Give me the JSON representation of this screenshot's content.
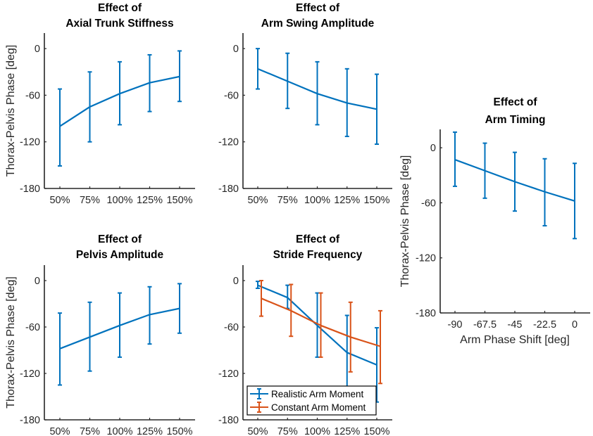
{
  "figure": {
    "colors": {
      "realistic": "#0072BD",
      "constant": "#D95319",
      "axis": "#262626"
    }
  },
  "chart_data": [
    {
      "id": "axial-trunk-stiffness",
      "type": "line",
      "title_lines": [
        "Effect of",
        "Axial Trunk Stiffness"
      ],
      "xlabel": "",
      "ylabel": "Thorax-Pelvis Phase [deg]",
      "categories": [
        "50%",
        "75%",
        "100%",
        "125%",
        "150%"
      ],
      "yticks": [
        0,
        -60,
        -120,
        -180
      ],
      "ytick_labels": [
        "0",
        "-60",
        "-120",
        "-180"
      ],
      "ylim": [
        -180,
        20
      ],
      "series": [
        {
          "name": "Realistic Arm Moment",
          "color": "#0072BD",
          "values": [
            -100,
            -75,
            -58,
            -44,
            -36
          ],
          "upper": [
            -52,
            -30,
            -17,
            -8,
            -3
          ],
          "lower": [
            -151,
            -120,
            -98,
            -81,
            -68
          ]
        }
      ]
    },
    {
      "id": "arm-swing-amplitude",
      "type": "line",
      "title_lines": [
        "Effect of",
        "Arm Swing Amplitude"
      ],
      "xlabel": "",
      "ylabel": "",
      "categories": [
        "50%",
        "75%",
        "100%",
        "125%",
        "150%"
      ],
      "yticks": [
        0,
        -60,
        -120,
        -180
      ],
      "ytick_labels": [
        "0",
        "-60",
        "-120",
        "-180"
      ],
      "ylim": [
        -180,
        20
      ],
      "series": [
        {
          "name": "Realistic Arm Moment",
          "color": "#0072BD",
          "values": [
            -26,
            -42,
            -58,
            -70,
            -78
          ],
          "upper": [
            0,
            -6,
            -17,
            -26,
            -33
          ],
          "lower": [
            -52,
            -77,
            -98,
            -113,
            -123
          ]
        }
      ]
    },
    {
      "id": "arm-timing",
      "type": "line",
      "title_lines": [
        "Effect of",
        "Arm Timing"
      ],
      "xlabel": "Arm Phase Shift [deg]",
      "ylabel": "Thorax-Pelvis Phase [deg]",
      "categories": [
        "-90",
        "-67.5",
        "-45",
        "-22.5",
        "0"
      ],
      "yticks": [
        0,
        -60,
        -120,
        -180
      ],
      "ytick_labels": [
        "0",
        "-60",
        "-120",
        "-180"
      ],
      "ylim": [
        -180,
        20
      ],
      "series": [
        {
          "name": "Realistic Arm Moment",
          "color": "#0072BD",
          "values": [
            -13,
            -25,
            -37,
            -48,
            -58
          ],
          "upper": [
            17,
            5,
            -5,
            -12,
            -17
          ],
          "lower": [
            -42,
            -55,
            -69,
            -85,
            -99
          ]
        }
      ]
    },
    {
      "id": "pelvis-amplitude",
      "type": "line",
      "title_lines": [
        "Effect of",
        "Pelvis Amplitude"
      ],
      "xlabel": "",
      "ylabel": "Thorax-Pelvis Phase [deg]",
      "categories": [
        "50%",
        "75%",
        "100%",
        "125%",
        "150%"
      ],
      "yticks": [
        0,
        -60,
        -120,
        -180
      ],
      "ytick_labels": [
        "0",
        "-60",
        "-120",
        "-180"
      ],
      "ylim": [
        -180,
        20
      ],
      "series": [
        {
          "name": "Realistic Arm Moment",
          "color": "#0072BD",
          "values": [
            -88,
            -73,
            -58,
            -44,
            -36
          ],
          "upper": [
            -42,
            -28,
            -16,
            -8,
            -4
          ],
          "lower": [
            -135,
            -117,
            -99,
            -82,
            -68
          ]
        }
      ]
    },
    {
      "id": "stride-frequency",
      "type": "line",
      "title_lines": [
        "Effect of",
        "Stride Frequency"
      ],
      "xlabel": "",
      "ylabel": "",
      "categories": [
        "50%",
        "75%",
        "100%",
        "125%",
        "150%"
      ],
      "yticks": [
        0,
        -60,
        -120,
        -180
      ],
      "ytick_labels": [
        "0",
        "-60",
        "-120",
        "-180"
      ],
      "ylim": [
        -180,
        20
      ],
      "legend": {
        "placement": "bottom-left",
        "entries": [
          "Realistic Arm Moment",
          "Constant Arm Moment"
        ]
      },
      "series": [
        {
          "name": "Realistic Arm Moment",
          "color": "#0072BD",
          "values": [
            -6,
            -22,
            -58,
            -93,
            -109
          ],
          "upper": [
            -1,
            -6,
            -16,
            -45,
            -61
          ],
          "lower": [
            -10,
            -36,
            -99,
            -141,
            -157
          ]
        },
        {
          "name": "Constant Arm Moment",
          "color": "#D95319",
          "values": [
            -23,
            -39,
            -58,
            -73,
            -85
          ],
          "upper": [
            0,
            -5,
            -16,
            -28,
            -39
          ],
          "lower": [
            -46,
            -72,
            -99,
            -118,
            -133
          ]
        }
      ]
    }
  ]
}
